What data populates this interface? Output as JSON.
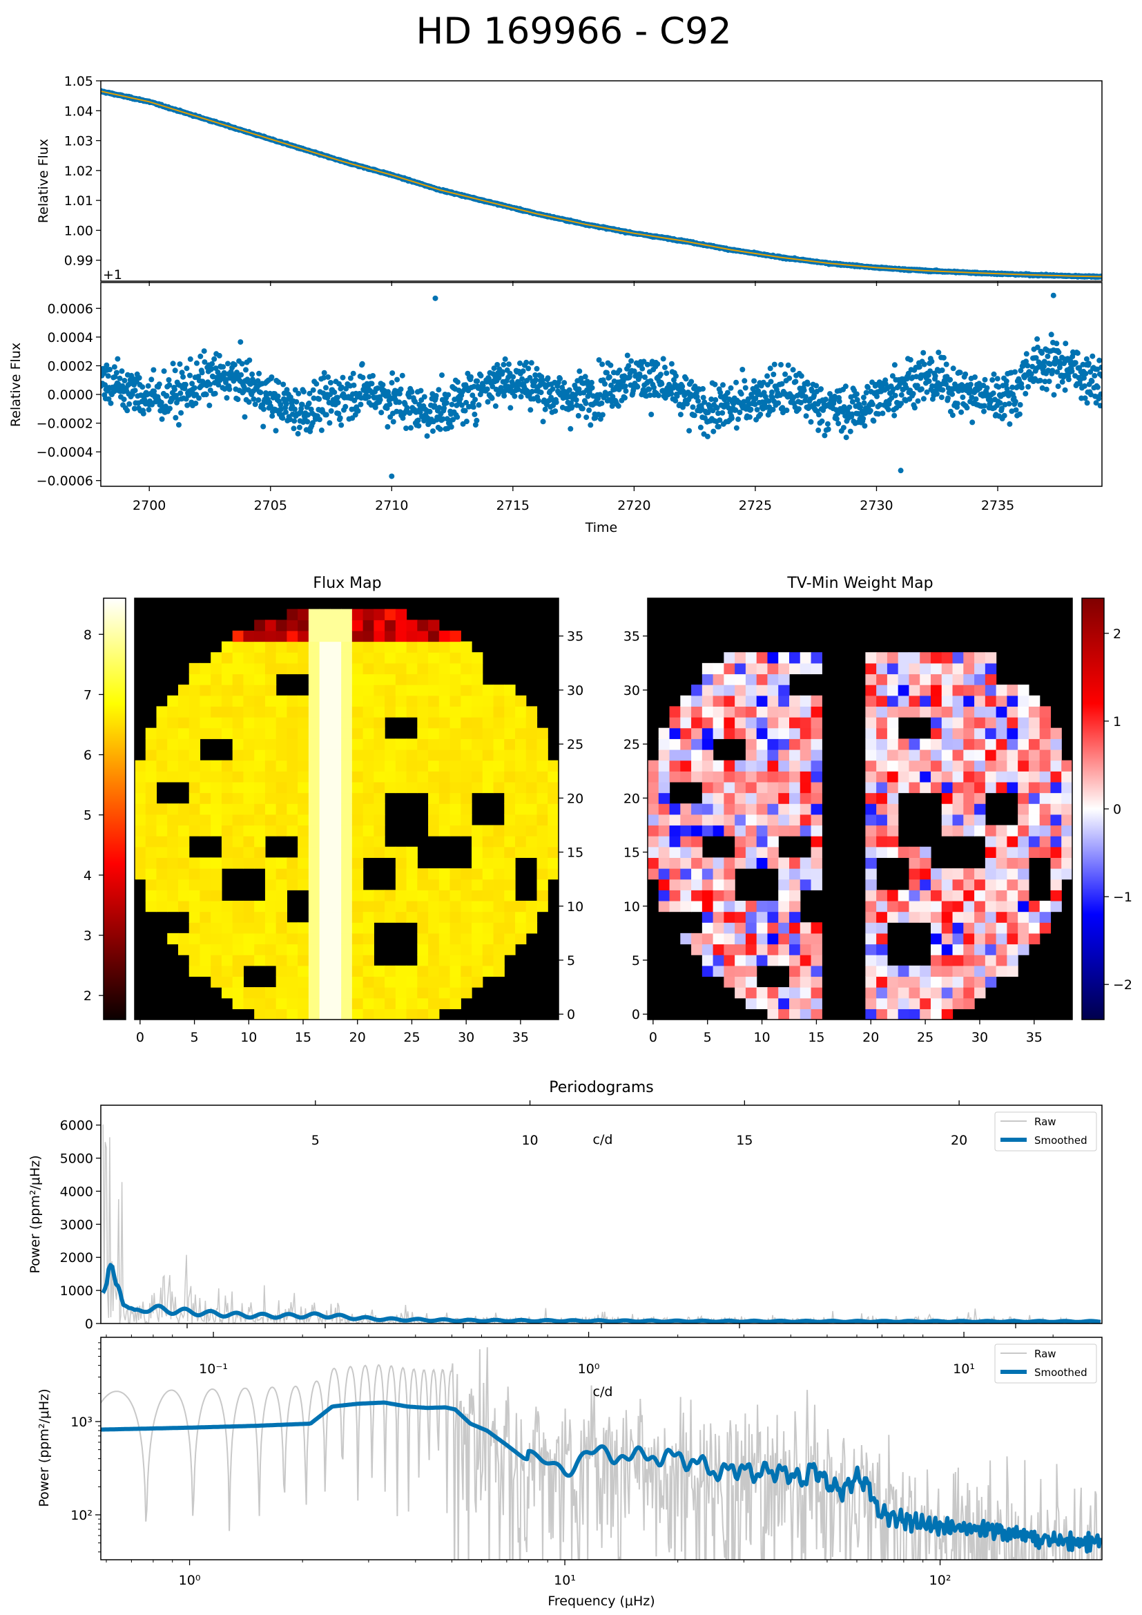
{
  "figure": {
    "title": "HD 169966 - C92"
  },
  "chart_data": [
    {
      "id": "lc_top",
      "type": "scatter",
      "ylabel": "Relative Flux",
      "offset_text": "+1",
      "xlim": [
        2698.0,
        2739.3
      ],
      "ylim": [
        0.983,
        1.05
      ],
      "yticks": [
        0.99,
        1.0,
        1.01,
        1.02,
        1.03,
        1.04,
        1.05
      ],
      "ytick_labels": [
        "0.99",
        "1.00",
        "1.01",
        "1.02",
        "1.03",
        "1.04",
        "1.05"
      ],
      "trend_points": [
        [
          2698.0,
          1.0465
        ],
        [
          2700,
          1.043
        ],
        [
          2702,
          1.038
        ],
        [
          2704,
          1.033
        ],
        [
          2706,
          1.028
        ],
        [
          2708,
          1.023
        ],
        [
          2710,
          1.0185
        ],
        [
          2712,
          1.0135
        ],
        [
          2714,
          1.0095
        ],
        [
          2716,
          1.0055
        ],
        [
          2718,
          1.002
        ],
        [
          2720,
          0.999
        ],
        [
          2722,
          0.9965
        ],
        [
          2724,
          0.9935
        ],
        [
          2726,
          0.991
        ],
        [
          2728,
          0.989
        ],
        [
          2730,
          0.9875
        ],
        [
          2732,
          0.9865
        ],
        [
          2734,
          0.9858
        ],
        [
          2736,
          0.9852
        ],
        [
          2738,
          0.9847
        ],
        [
          2739.3,
          0.9845
        ]
      ],
      "colors": {
        "points": "#0072b2",
        "trend": "#e69f00"
      }
    },
    {
      "id": "lc_bottom",
      "type": "scatter",
      "xlabel": "Time",
      "ylabel": "Relative Flux",
      "xlim": [
        2698.0,
        2739.3
      ],
      "ylim": [
        -0.00064,
        0.00078
      ],
      "xticks": [
        2700,
        2705,
        2710,
        2715,
        2720,
        2725,
        2730,
        2735
      ],
      "xtick_labels": [
        "2700",
        "2705",
        "2710",
        "2715",
        "2720",
        "2725",
        "2730",
        "2735"
      ],
      "yticks": [
        -0.0006,
        -0.0004,
        -0.0002,
        0.0,
        0.0002,
        0.0004,
        0.0006
      ],
      "ytick_labels": [
        "−0.0006",
        "−0.0004",
        "−0.0002",
        "0.0000",
        "0.0002",
        "0.0004",
        "0.0006"
      ],
      "scatter_std": 0.00016,
      "outliers": [
        [
          2711.8,
          0.00067
        ],
        [
          2737.3,
          0.00069
        ],
        [
          2710.0,
          -0.00057
        ],
        [
          2731.0,
          -0.00053
        ]
      ],
      "colors": {
        "points": "#0072b2"
      }
    },
    {
      "id": "flux_map",
      "type": "heatmap",
      "title": "Flux Map",
      "xticks": [
        0,
        5,
        10,
        15,
        20,
        25,
        30,
        35
      ],
      "xtick_labels": [
        "0",
        "5",
        "10",
        "15",
        "20",
        "25",
        "30",
        "35"
      ],
      "yticks": [
        0,
        5,
        10,
        15,
        20,
        25,
        30,
        35
      ],
      "ytick_labels": [
        "0",
        "5",
        "10",
        "15",
        "20",
        "25",
        "30",
        "35"
      ],
      "colorbar_ticks": [
        2,
        3,
        4,
        5,
        6,
        7,
        8
      ],
      "colorbar_tick_labels": [
        "2",
        "3",
        "4",
        "5",
        "6",
        "7",
        "8"
      ],
      "colorbar_range": [
        1.6,
        8.6
      ],
      "colormap": "hot"
    },
    {
      "id": "weight_map",
      "type": "heatmap",
      "title": "TV-Min Weight Map",
      "xticks": [
        0,
        5,
        10,
        15,
        20,
        25,
        30,
        35
      ],
      "xtick_labels": [
        "0",
        "5",
        "10",
        "15",
        "20",
        "25",
        "30",
        "35"
      ],
      "yticks": [
        0,
        5,
        10,
        15,
        20,
        25,
        30,
        35
      ],
      "ytick_labels": [
        "0",
        "5",
        "10",
        "15",
        "20",
        "25",
        "30",
        "35"
      ],
      "colorbar_ticks": [
        2,
        1,
        0,
        -1,
        -2
      ],
      "colorbar_tick_labels": [
        "2",
        "1",
        "0",
        "−1",
        "−2"
      ],
      "colorbar_range": [
        -2.4,
        2.4
      ],
      "colormap": "seismic"
    },
    {
      "id": "pg_linear",
      "type": "line",
      "title": "Periodograms",
      "ylabel": "Power (ppm²/μHz)",
      "top_xlabel": "c/d",
      "xlim": [
        0,
        270
      ],
      "ylim": [
        0,
        6600
      ],
      "yticks": [
        0,
        1000,
        2000,
        3000,
        4000,
        5000,
        6000
      ],
      "ytick_labels": [
        "0",
        "1000",
        "2000",
        "3000",
        "4000",
        "5000",
        "6000"
      ],
      "top_xticks_cd": [
        5,
        10,
        15,
        20
      ],
      "top_xtick_labels": [
        "5",
        "10",
        "15",
        "20"
      ],
      "series": [
        {
          "name": "Raw",
          "color": "#c8c8c8"
        },
        {
          "name": "Smoothed",
          "color": "#0072b2",
          "points": [
            [
              0.6,
              820
            ],
            [
              1.5,
              900
            ],
            [
              2.2,
              1400
            ],
            [
              3.0,
              1600
            ],
            [
              3.5,
              1500
            ],
            [
              4.0,
              1350
            ],
            [
              4.5,
              1450
            ],
            [
              5.0,
              1400
            ],
            [
              6.0,
              700
            ],
            [
              7.5,
              420
            ],
            [
              9,
              330
            ],
            [
              12,
              470
            ],
            [
              20,
              380
            ],
            [
              30,
              300
            ],
            [
              40,
              240
            ],
            [
              50,
              230
            ],
            [
              60,
              250
            ],
            [
              70,
              160
            ],
            [
              80,
              120
            ],
            [
              100,
              90
            ],
            [
              130,
              80
            ],
            [
              160,
              70
            ],
            [
              200,
              65
            ],
            [
              270,
              60
            ]
          ]
        }
      ]
    },
    {
      "id": "pg_log",
      "type": "line",
      "xlabel": "Frequency (μHz)",
      "ylabel": "Power (ppm²/μHz)",
      "top_xlabel": "c/d",
      "xscale": "log",
      "yscale": "log",
      "xlim": [
        0.58,
        270
      ],
      "ylim": [
        33,
        8000
      ],
      "xticks": [
        1,
        10,
        100
      ],
      "xtick_labels": [
        "10⁰",
        "10¹",
        "10²"
      ],
      "yticks": [
        100,
        1000
      ],
      "ytick_labels": [
        "10²",
        "10³"
      ],
      "top_xtick_labels": [
        "10⁻¹",
        "10⁰",
        "10¹"
      ],
      "series": [
        {
          "name": "Raw",
          "color": "#c8c8c8"
        },
        {
          "name": "Smoothed",
          "color": "#0072b2",
          "points": [
            [
              0.58,
              820
            ],
            [
              1.0,
              860
            ],
            [
              1.5,
              900
            ],
            [
              2.1,
              950
            ],
            [
              2.4,
              1450
            ],
            [
              2.8,
              1550
            ],
            [
              3.3,
              1600
            ],
            [
              3.8,
              1450
            ],
            [
              4.3,
              1400
            ],
            [
              4.8,
              1420
            ],
            [
              5.1,
              1350
            ],
            [
              5.6,
              950
            ],
            [
              6.2,
              800
            ],
            [
              7.0,
              560
            ],
            [
              7.8,
              400
            ],
            [
              9.0,
              360
            ],
            [
              10.0,
              330
            ],
            [
              11.5,
              430
            ],
            [
              13,
              470
            ],
            [
              15,
              420
            ],
            [
              18,
              430
            ],
            [
              21,
              400
            ],
            [
              24,
              330
            ],
            [
              26,
              270
            ],
            [
              28,
              330
            ],
            [
              32,
              280
            ],
            [
              35,
              300
            ],
            [
              40,
              280
            ],
            [
              43,
              230
            ],
            [
              46,
              330
            ],
            [
              50,
              220
            ],
            [
              55,
              180
            ],
            [
              60,
              260
            ],
            [
              65,
              200
            ],
            [
              68,
              110
            ],
            [
              75,
              95
            ],
            [
              85,
              85
            ],
            [
              100,
              75
            ],
            [
              120,
              72
            ],
            [
              140,
              70
            ],
            [
              170,
              55
            ],
            [
              200,
              55
            ],
            [
              240,
              50
            ],
            [
              270,
              55
            ]
          ]
        }
      ]
    }
  ]
}
